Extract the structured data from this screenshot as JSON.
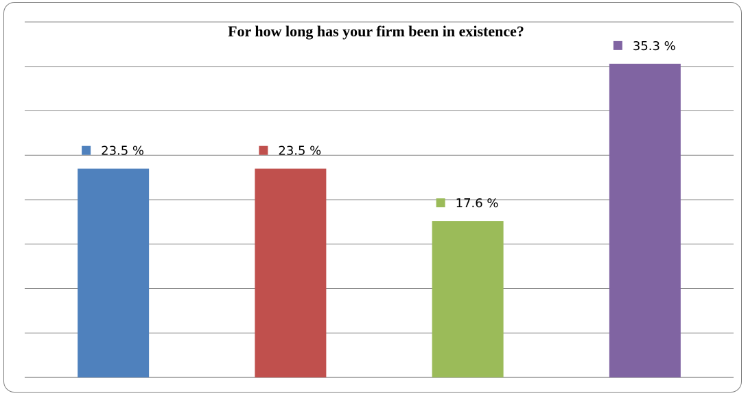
{
  "chart_data": {
    "type": "bar",
    "title": "For how long has your firm been in existence?",
    "xlabel": "",
    "ylabel": "",
    "ylim": [
      0,
      40
    ],
    "grid": true,
    "categories": [
      "",
      "",
      "",
      ""
    ],
    "values": [
      23.5,
      23.5,
      17.6,
      35.3
    ],
    "data_labels": [
      "23.5 %",
      "23.5 %",
      "17.6 %",
      "35.3 %"
    ],
    "colors": [
      "#4f81bd",
      "#c0504d",
      "#9bbb59",
      "#8064a2"
    ]
  }
}
